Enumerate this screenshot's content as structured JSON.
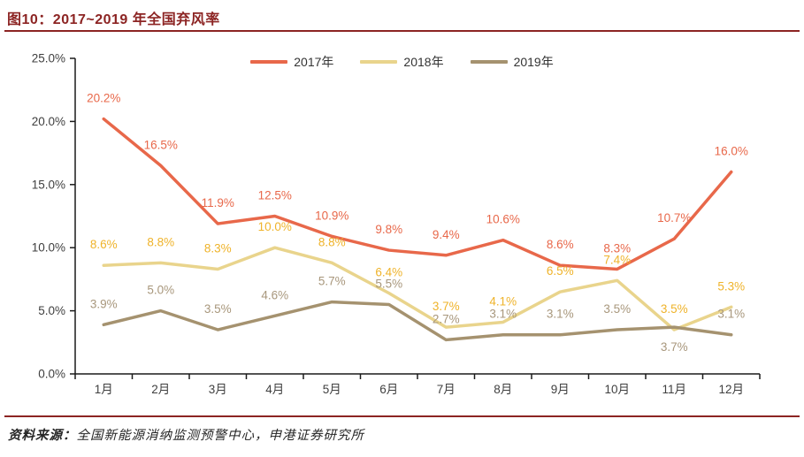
{
  "figure": {
    "title": "图10：2017~2019 年全国弃风率",
    "source_label": "资料来源：",
    "source_text": "全国新能源消纳监测预警中心，申港证券研究所"
  },
  "colors": {
    "accent_maroon": "#8C2423",
    "axis_line": "#1A1A1A",
    "axis_text": "#3F3F3F",
    "legend_text": "#333333",
    "background": "#FFFFFF"
  },
  "chart_data": {
    "type": "line",
    "categories": [
      "1月",
      "2月",
      "3月",
      "4月",
      "5月",
      "6月",
      "7月",
      "8月",
      "9月",
      "10月",
      "11月",
      "12月"
    ],
    "series": [
      {
        "name": "2017年",
        "line_color": "#E8684A",
        "label_color": "#E8684A",
        "values": [
          20.2,
          16.5,
          11.9,
          12.5,
          10.9,
          9.8,
          9.4,
          10.6,
          8.6,
          8.3,
          10.7,
          16.0
        ]
      },
      {
        "name": "2018年",
        "line_color": "#E9D48C",
        "label_color": "#EFB32A",
        "values": [
          8.6,
          8.8,
          8.3,
          10.0,
          8.8,
          6.4,
          3.7,
          4.1,
          6.5,
          7.4,
          3.5,
          5.3
        ]
      },
      {
        "name": "2019年",
        "line_color": "#A5926F",
        "label_color": "#A8977C",
        "values": [
          3.9,
          5.0,
          3.5,
          4.6,
          5.7,
          5.5,
          2.7,
          3.1,
          3.1,
          3.5,
          3.7,
          3.1
        ]
      }
    ],
    "ylim": [
      0,
      25
    ],
    "ytick_step": 5,
    "ytick_labels": [
      "0.0%",
      "5.0%",
      "10.0%",
      "15.0%",
      "20.0%",
      "25.0%"
    ],
    "xlabel": "",
    "ylabel": "",
    "grid": false,
    "legend_position": "top-center",
    "data_labels": true,
    "label_suffix": "%"
  }
}
